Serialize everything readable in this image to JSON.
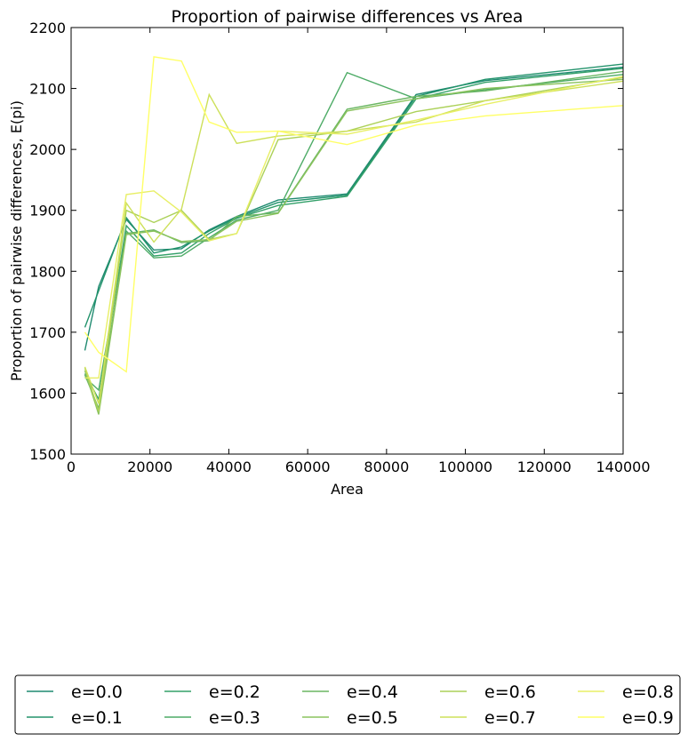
{
  "chart_data": {
    "type": "line",
    "title": "Proportion of pairwise differences vs Area",
    "xlabel": "Area",
    "ylabel": "Proportion of pairwise differences, E(pi)",
    "xlim": [
      0,
      140000
    ],
    "ylim": [
      1500,
      2200
    ],
    "xticks": [
      "0",
      "20000",
      "40000",
      "60000",
      "80000",
      "100000",
      "120000",
      "140000"
    ],
    "yticks": [
      "1500",
      "1600",
      "1700",
      "1800",
      "1900",
      "2000",
      "2100",
      "2200"
    ],
    "grid": false,
    "legend_placement": "below",
    "x": [
      3500,
      7000,
      14000,
      21000,
      28000,
      35000,
      42000,
      52500,
      70000,
      87500,
      105000,
      140000
    ],
    "series": [
      {
        "name": "e=0.0",
        "color": "#1f8a70",
        "values": [
          1670,
          1775,
          1885,
          1835,
          1837,
          1868,
          1890,
          1917,
          1927,
          2090,
          2113,
          2135
        ]
      },
      {
        "name": "e=0.1",
        "color": "#23936c",
        "values": [
          1708,
          1768,
          1888,
          1830,
          1840,
          1866,
          1888,
          1913,
          1925,
          2087,
          2115,
          2140
        ]
      },
      {
        "name": "e=0.2",
        "color": "#33a069",
        "values": [
          1632,
          1590,
          1875,
          1825,
          1830,
          1862,
          1887,
          1908,
          1923,
          2083,
          2110,
          2133
        ]
      },
      {
        "name": "e=0.3",
        "color": "#4dab66",
        "values": [
          1626,
          1605,
          1866,
          1822,
          1825,
          1855,
          1884,
          1900,
          2126,
          2083,
          2098,
          2123
        ]
      },
      {
        "name": "e=0.4",
        "color": "#6ab662",
        "values": [
          1630,
          1575,
          1862,
          1868,
          1847,
          1850,
          1890,
          1896,
          2066,
          2087,
          2096,
          2128
        ]
      },
      {
        "name": "e=0.5",
        "color": "#8bc35e",
        "values": [
          1637,
          1565,
          1860,
          1866,
          1849,
          1852,
          1882,
          1895,
          2063,
          2083,
          2100,
          2115
        ]
      },
      {
        "name": "e=0.6",
        "color": "#acd159",
        "values": [
          1641,
          1570,
          1900,
          1880,
          1900,
          1852,
          1862,
          2016,
          2030,
          2062,
          2080,
          2118
        ]
      },
      {
        "name": "e=0.7",
        "color": "#cde05a",
        "values": [
          1643,
          1583,
          1912,
          1848,
          1902,
          2090,
          2010,
          2022,
          2030,
          2045,
          2080,
          2112
        ]
      },
      {
        "name": "e=0.8",
        "color": "#e8ef66",
        "values": [
          1625,
          1625,
          1926,
          1932,
          1897,
          1850,
          1862,
          2030,
          2025,
          2048,
          2074,
          2120
        ]
      },
      {
        "name": "e=0.9",
        "color": "#ffff66",
        "values": [
          1700,
          1667,
          1635,
          2152,
          2145,
          2045,
          2028,
          2030,
          2008,
          2040,
          2055,
          2072
        ]
      }
    ]
  }
}
